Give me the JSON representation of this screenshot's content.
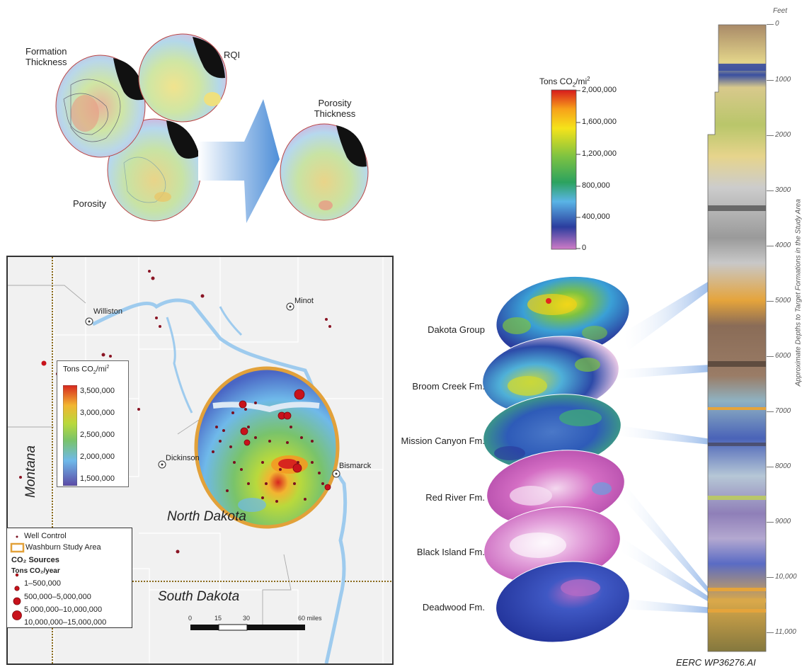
{
  "top_maps": {
    "formation_thickness_label_line1": "Formation",
    "formation_thickness_label_line2": "Thickness",
    "rqi_label": "RQI",
    "porosity_label": "Porosity",
    "porosity_thickness_label_line1": "Porosity",
    "porosity_thickness_label_line2": "Thickness"
  },
  "main_colorbar": {
    "title": "Tons CO",
    "title_sub": "2",
    "title_tail": "/mi",
    "title_sup": "2",
    "ticks": [
      "2,000,000",
      "1,600,000",
      "1,200,000",
      "800,000",
      "400,000",
      "0"
    ],
    "colors": [
      "#d7191c",
      "#f7a11a",
      "#f5e31a",
      "#7cc242",
      "#2ca25f",
      "#5ab4e6",
      "#2b3d9e",
      "#d07cc7"
    ]
  },
  "formations": [
    {
      "name": "Dakota Group"
    },
    {
      "name": "Broom Creek Fm."
    },
    {
      "name": "Mission Canyon Fm."
    },
    {
      "name": "Red River Fm."
    },
    {
      "name": "Black Island Fm."
    },
    {
      "name": "Deadwood Fm."
    }
  ],
  "depth_axis": {
    "unit": "Feet",
    "ticks": [
      "0",
      "1000",
      "2000",
      "3000",
      "4000",
      "5000",
      "6000",
      "7000",
      "8000",
      "9000",
      "10,000",
      "11,000"
    ],
    "title": "Approximate Depths to Target Formations in the Study Area"
  },
  "inset_map": {
    "state_montana": "Montana",
    "state_north_dakota": "North Dakota",
    "state_south_dakota": "South Dakota",
    "cities": [
      "Williston",
      "Minot",
      "Dickinson",
      "Bismarck"
    ],
    "colorbar": {
      "title": "Tons CO",
      "title_sub": "2",
      "title_tail": "/mi",
      "title_sup": "2",
      "ticks": [
        "3,500,000",
        "3,000,000",
        "2,500,000",
        "2,000,000",
        "1,500,000"
      ]
    },
    "scale_bar": {
      "ticks": [
        "0",
        "15",
        "30",
        "60 miles"
      ]
    },
    "legend": {
      "well_control": "Well Control",
      "study_area": "Washburn Study Area",
      "co2_sources": "CO₂ Sources",
      "units": "Tons CO₂/year",
      "classes": [
        "1–500,000",
        "500,000–5,000,000",
        "5,000,000–10,000,000",
        "10,000,000–15,000,000"
      ]
    }
  },
  "credit": "EERC  WP36276.AI",
  "colors": {
    "study_area_ring": "#e2a13a",
    "river": "#9ecbee",
    "co2_source": "#b5121b",
    "well": "#7a1020"
  }
}
